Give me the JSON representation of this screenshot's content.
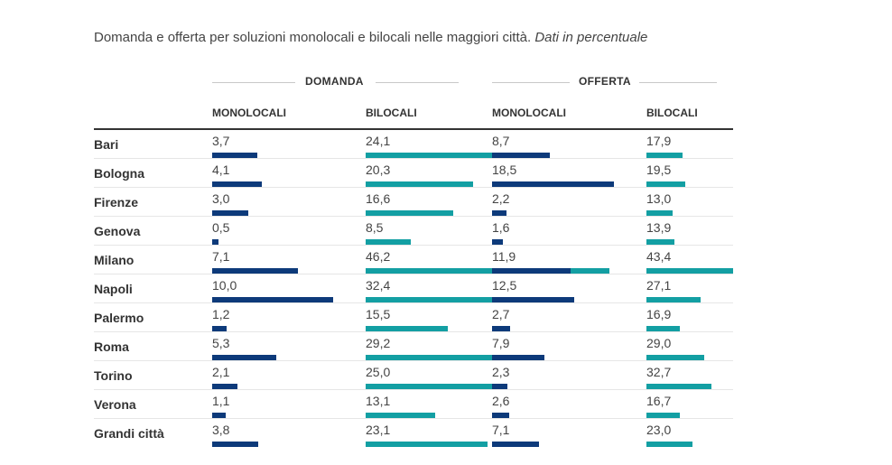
{
  "title": {
    "main": "Domanda e offerta per soluzioni monolocali e bilocali nelle maggiori città.",
    "note": "Dati in percentuale"
  },
  "groups": {
    "domanda": "DOMANDA",
    "offerta": "OFFERTA"
  },
  "columns": [
    "MONOLOCALI",
    "BILOCALI",
    "MONOLOCALI",
    "BILOCALI"
  ],
  "colors": {
    "monolocali": "#0d3a7a",
    "bilocali": "#139fa3"
  },
  "chart_data": {
    "type": "table",
    "title": "Domanda e offerta per soluzioni monolocali e bilocali nelle maggiori città. Dati in percentuale",
    "column_groups": [
      "DOMANDA",
      "OFFERTA"
    ],
    "series": [
      {
        "name": "DOMANDA MONOLOCALI",
        "values": [
          3.7,
          4.1,
          3.0,
          0.5,
          7.1,
          10.0,
          1.2,
          5.3,
          2.1,
          1.1,
          3.8
        ]
      },
      {
        "name": "DOMANDA BILOCALI",
        "values": [
          24.1,
          20.3,
          16.6,
          8.5,
          46.2,
          32.4,
          15.5,
          29.2,
          25.0,
          13.1,
          23.1
        ]
      },
      {
        "name": "OFFERTA MONOLOCALI",
        "values": [
          8.7,
          18.5,
          2.2,
          1.6,
          11.9,
          12.5,
          2.7,
          7.9,
          2.3,
          2.6,
          7.1
        ]
      },
      {
        "name": "OFFERTA BILOCALI",
        "values": [
          17.9,
          19.5,
          13.0,
          13.9,
          43.4,
          27.1,
          16.9,
          29.0,
          32.7,
          16.7,
          23.0
        ]
      }
    ],
    "rows": [
      {
        "city": "Bari",
        "values": [
          "3,7",
          "24,1",
          "8,7",
          "17,9"
        ]
      },
      {
        "city": "Bologna",
        "values": [
          "4,1",
          "20,3",
          "18,5",
          "19,5"
        ]
      },
      {
        "city": "Firenze",
        "values": [
          "3,0",
          "16,6",
          "2,2",
          "13,0"
        ]
      },
      {
        "city": "Genova",
        "values": [
          "0,5",
          "8,5",
          "1,6",
          "13,9"
        ]
      },
      {
        "city": "Milano",
        "values": [
          "7,1",
          "46,2",
          "11,9",
          "43,4"
        ]
      },
      {
        "city": "Napoli",
        "values": [
          "10,0",
          "32,4",
          "12,5",
          "27,1"
        ]
      },
      {
        "city": "Palermo",
        "values": [
          "1,2",
          "15,5",
          "2,7",
          "16,9"
        ]
      },
      {
        "city": "Roma",
        "values": [
          "5,3",
          "29,2",
          "7,9",
          "29,0"
        ]
      },
      {
        "city": "Torino",
        "values": [
          "2,1",
          "25,0",
          "2,3",
          "32,7"
        ]
      },
      {
        "city": "Verona",
        "values": [
          "1,1",
          "13,1",
          "2,6",
          "16,7"
        ]
      },
      {
        "city": "Grandi città",
        "values": [
          "3,8",
          "23,1",
          "7,1",
          "23,0"
        ]
      }
    ]
  }
}
